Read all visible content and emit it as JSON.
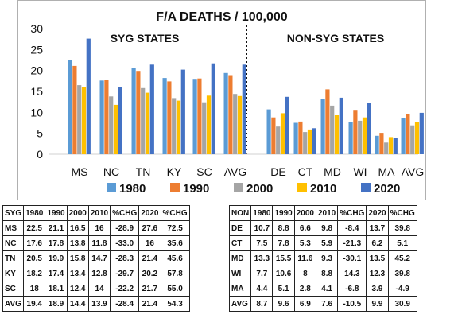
{
  "chart_data": {
    "type": "bar",
    "title": "F/A DEATHS / 100,000",
    "group_labels": [
      "SYG STATES",
      "NON-SYG STATES"
    ],
    "categories": [
      "MS",
      "NC",
      "TN",
      "KY",
      "SC",
      "AVG",
      "DE",
      "CT",
      "MD",
      "WI",
      "MA",
      "AVG"
    ],
    "series": [
      {
        "name": "1980",
        "color": "#5b9bd5",
        "values": [
          22.5,
          17.6,
          20.5,
          18.2,
          18.0,
          19.4,
          10.7,
          7.5,
          13.3,
          7.7,
          4.4,
          8.7
        ]
      },
      {
        "name": "1990",
        "color": "#ed7d31",
        "values": [
          21.1,
          17.8,
          19.9,
          17.4,
          18.1,
          18.9,
          8.8,
          7.8,
          15.5,
          10.6,
          5.1,
          9.6
        ]
      },
      {
        "name": "2000",
        "color": "#a5a5a5",
        "values": [
          16.5,
          13.8,
          15.8,
          13.4,
          12.4,
          14.4,
          6.6,
          5.3,
          11.6,
          8.0,
          2.8,
          6.9
        ]
      },
      {
        "name": "2010",
        "color": "#ffc000",
        "values": [
          16.0,
          11.8,
          14.7,
          12.8,
          14.0,
          13.9,
          9.8,
          5.9,
          9.3,
          8.8,
          4.1,
          7.6
        ]
      },
      {
        "name": "2020",
        "color": "#4472c4",
        "values": [
          27.6,
          16.0,
          21.4,
          20.2,
          21.7,
          21.4,
          13.7,
          6.2,
          13.5,
          12.3,
          3.9,
          9.9
        ]
      }
    ],
    "ylim": [
      0,
      30
    ],
    "yticks": [
      "0",
      "5",
      "10",
      "15",
      "20",
      "25",
      "30"
    ],
    "legend": "bottom",
    "grid": false
  },
  "syg_table": {
    "headers": [
      "SYG",
      "1980",
      "1990",
      "2000",
      "2010",
      "%CHG",
      "2020",
      "%CHG"
    ],
    "rows": [
      [
        "MS",
        "22.5",
        "21.1",
        "16.5",
        "16",
        "-28.9",
        "27.6",
        "72.5"
      ],
      [
        "NC",
        "17.6",
        "17.8",
        "13.8",
        "11.8",
        "-33.0",
        "16",
        "35.6"
      ],
      [
        "TN",
        "20.5",
        "19.9",
        "15.8",
        "14.7",
        "-28.3",
        "21.4",
        "45.6"
      ],
      [
        "KY",
        "18.2",
        "17.4",
        "13.4",
        "12.8",
        "-29.7",
        "20.2",
        "57.8"
      ],
      [
        "SC",
        "18",
        "18.1",
        "12.4",
        "14",
        "-22.2",
        "21.7",
        "55.0"
      ],
      [
        "AVG",
        "19.4",
        "18.9",
        "14.4",
        "13.9",
        "-28.4",
        "21.4",
        "54.3"
      ]
    ]
  },
  "non_table": {
    "headers": [
      "NON",
      "1980",
      "1990",
      "2000",
      "2010",
      "%CHG",
      "2020",
      "%CHG"
    ],
    "rows": [
      [
        "DE",
        "10.7",
        "8.8",
        "6.6",
        "9.8",
        "-8.4",
        "13.7",
        "39.8"
      ],
      [
        "CT",
        "7.5",
        "7.8",
        "5.3",
        "5.9",
        "-21.3",
        "6.2",
        "5.1"
      ],
      [
        "MD",
        "13.3",
        "15.5",
        "11.6",
        "9.3",
        "-30.1",
        "13.5",
        "45.2"
      ],
      [
        "WI",
        "7.7",
        "10.6",
        "8",
        "8.8",
        "14.3",
        "12.3",
        "39.8"
      ],
      [
        "MA",
        "4.4",
        "5.1",
        "2.8",
        "4.1",
        "-6.8",
        "3.9",
        "-4.9"
      ],
      [
        "AVG",
        "8.7",
        "9.6",
        "6.9",
        "7.6",
        "-10.5",
        "9.9",
        "30.9"
      ]
    ]
  }
}
